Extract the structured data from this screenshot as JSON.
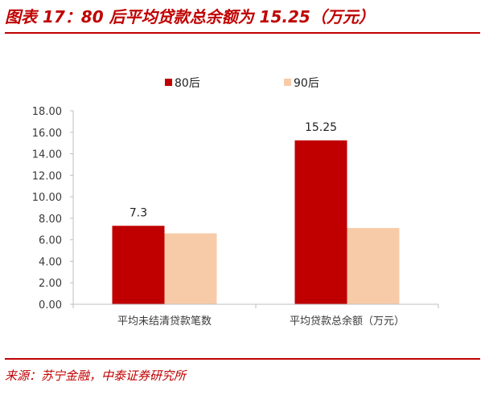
{
  "figure": {
    "title": "图表 17：80 后平均贷款总余额为 15.25（万元）",
    "source": "来源：苏宁金融，中泰证券研究所"
  },
  "colors": {
    "accent": "#c00000",
    "series_80": "#c00000",
    "series_90": "#f8cba8",
    "axis": "#bfbfbf"
  },
  "chart_data": {
    "type": "bar",
    "categories": [
      "平均未结清贷款笔数",
      "平均贷款总余额（万元）"
    ],
    "series": [
      {
        "name": "80后",
        "values": [
          7.3,
          15.25
        ],
        "data_labels": [
          "7.3",
          "15.25"
        ]
      },
      {
        "name": "90后",
        "values": [
          6.6,
          7.1
        ]
      }
    ],
    "ylim": [
      0,
      18
    ],
    "yticks": [
      "0.00",
      "2.00",
      "4.00",
      "6.00",
      "8.00",
      "10.00",
      "12.00",
      "14.00",
      "16.00",
      "18.00"
    ],
    "grid": false,
    "legend_position": "top"
  }
}
